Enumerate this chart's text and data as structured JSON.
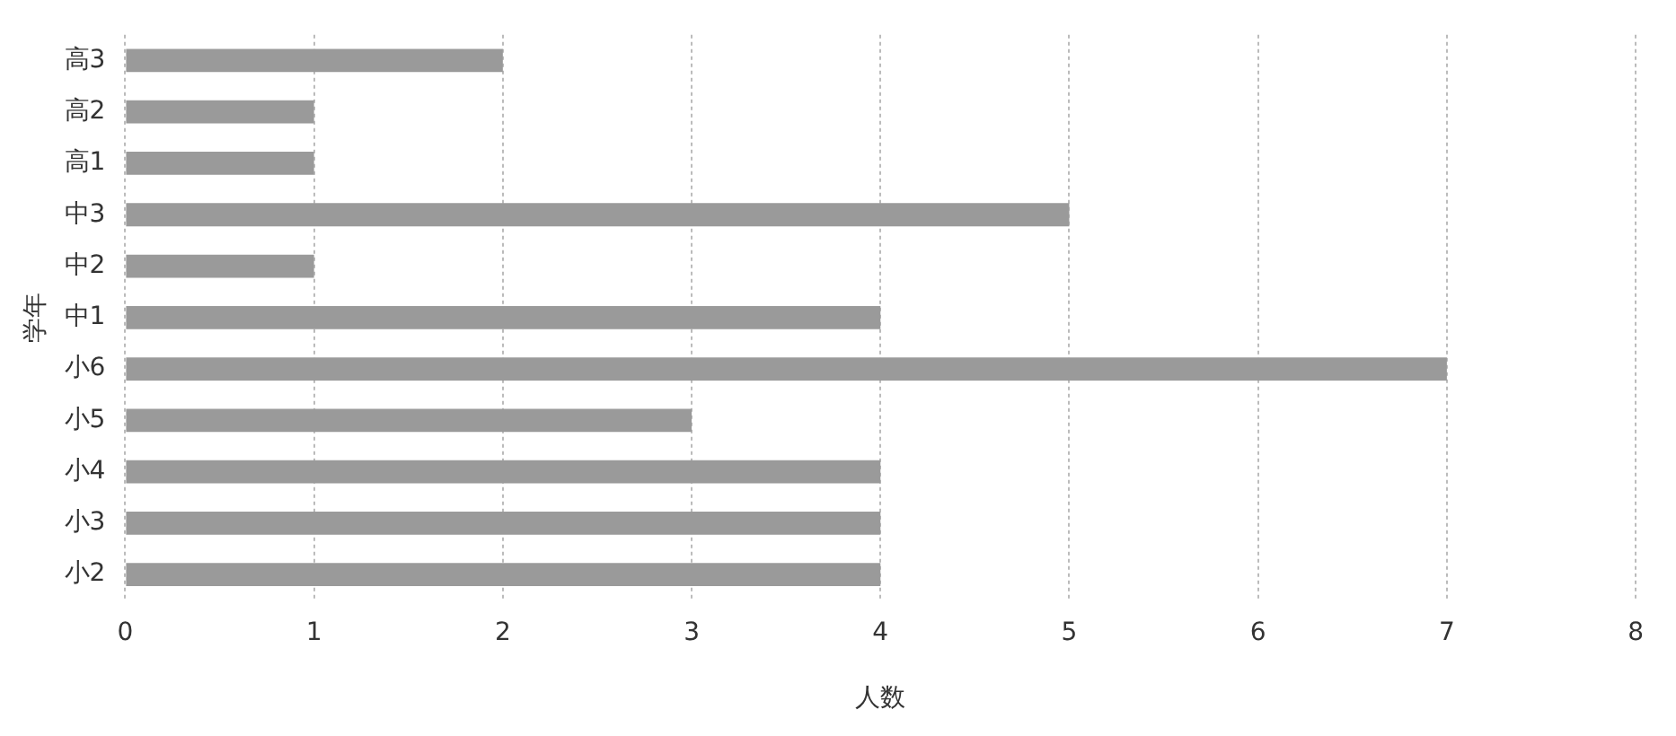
{
  "chart_data": {
    "type": "bar",
    "orientation": "horizontal",
    "xlabel": "人数",
    "ylabel": "学年",
    "categories": [
      "高3",
      "高2",
      "高1",
      "中3",
      "中2",
      "中1",
      "小6",
      "小5",
      "小4",
      "小3",
      "小2"
    ],
    "values": [
      2,
      1,
      1,
      5,
      1,
      4,
      7,
      3,
      4,
      4,
      4
    ],
    "color": "#9a9a9a",
    "xlim": [
      0,
      8
    ],
    "xticks": [
      0,
      1,
      2,
      3,
      4,
      5,
      6,
      7,
      8
    ],
    "grid": "x",
    "legend": false
  }
}
